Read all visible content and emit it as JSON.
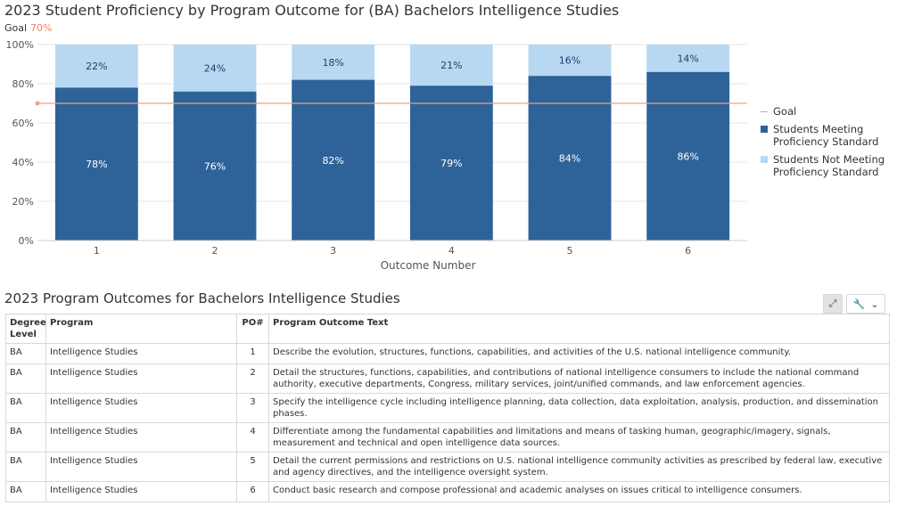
{
  "chart_title": "2023 Student Proficiency by Program Outcome for (BA) Bachelors Intelligence Studies",
  "goal_caption": {
    "label": "Goal",
    "value": "70%"
  },
  "chart_data": {
    "type": "bar",
    "stacked": true,
    "title": "2023 Student Proficiency by Program Outcome for (BA) Bachelors Intelligence Studies",
    "xlabel": "Outcome Number",
    "ylabel": "",
    "categories": [
      "1",
      "2",
      "3",
      "4",
      "5",
      "6"
    ],
    "y_ticks": [
      "0%",
      "20%",
      "40%",
      "60%",
      "80%",
      "100%"
    ],
    "ylim": [
      0,
      100
    ],
    "goal": 70,
    "series": [
      {
        "name": "Students Meeting Proficiency Standard",
        "values": [
          78,
          76,
          82,
          79,
          84,
          86
        ],
        "labels": [
          "78%",
          "76%",
          "82%",
          "79%",
          "84%",
          "86%"
        ],
        "color": "#2e6399"
      },
      {
        "name": "Students Not Meeting Proficiency Standard",
        "values": [
          22,
          24,
          18,
          21,
          16,
          14
        ],
        "labels": [
          "22%",
          "24%",
          "18%",
          "21%",
          "16%",
          "14%"
        ],
        "color": "#b8d8f2"
      }
    ],
    "goal_color": "#f0a080",
    "legend_placement": "right"
  },
  "legend": {
    "goal": "Goal",
    "meeting": [
      "Students Meeting",
      "Proficiency Standard"
    ],
    "not_meeting": [
      "Students Not Meeting",
      "Proficiency Standard"
    ]
  },
  "table_title": "2023 Program Outcomes for Bachelors Intelligence Studies",
  "table": {
    "headers": {
      "degree": "Degree Level",
      "program": "Program",
      "po": "PO#",
      "text": "Program Outcome Text"
    },
    "rows": [
      {
        "degree": "BA",
        "program": "Intelligence Studies",
        "po": "1",
        "text": "Describe the evolution, structures, functions, capabilities, and activities of the U.S. national intelligence community."
      },
      {
        "degree": "BA",
        "program": "Intelligence Studies",
        "po": "2",
        "text": "Detail the structures, functions, capabilities, and contributions of national intelligence consumers to include the national command authority, executive departments, Congress, military services, joint/unified commands, and law enforcement agencies."
      },
      {
        "degree": "BA",
        "program": "Intelligence Studies",
        "po": "3",
        "text": "Specify the intelligence cycle including intelligence planning, data collection, data exploitation, analysis, production, and dissemination phases."
      },
      {
        "degree": "BA",
        "program": "Intelligence Studies",
        "po": "4",
        "text": "Differentiate among the fundamental capabilities and limitations and means of tasking human, geographic/imagery, signals, measurement and technical and open intelligence data sources."
      },
      {
        "degree": "BA",
        "program": "Intelligence Studies",
        "po": "5",
        "text": "Detail the current permissions and restrictions on U.S. national intelligence community activities as prescribed by federal law, executive and agency directives, and the intelligence oversight system."
      },
      {
        "degree": "BA",
        "program": "Intelligence Studies",
        "po": "6",
        "text": "Conduct basic research and compose professional and academic analyses on issues critical to intelligence consumers."
      }
    ]
  },
  "tools": {
    "expand_icon": "expand-icon",
    "wrench_icon": "wrench-icon",
    "chevron_icon": "chevron-down-icon"
  }
}
